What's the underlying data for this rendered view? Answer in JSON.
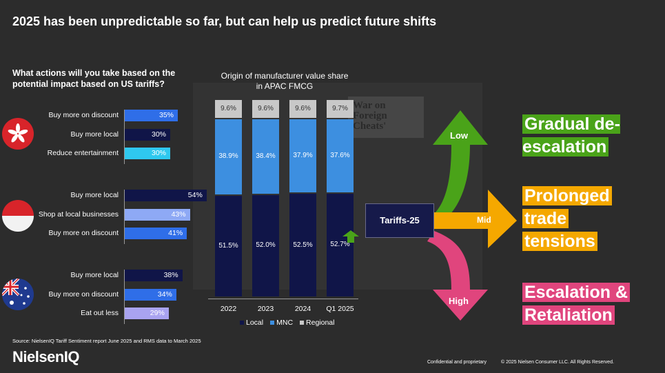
{
  "title": "2025 has been unpredictable so far, but can help us predict future shifts",
  "question": "What actions will you take based on the potential impact based on US tariffs?",
  "background_text": "War on Foreign Cheats'",
  "groups": [
    {
      "flag": "hong-kong",
      "items": [
        {
          "label": "Buy more on discount",
          "value": "35%",
          "pct": 35,
          "color": "#2f6ee8"
        },
        {
          "label": "Buy more local",
          "value": "30%",
          "pct": 30,
          "color": "#101548"
        },
        {
          "label": "Reduce entertainment",
          "value": "30%",
          "pct": 30,
          "color": "#2fc8ef"
        }
      ]
    },
    {
      "flag": "indonesia",
      "items": [
        {
          "label": "Buy more local",
          "value": "54%",
          "pct": 54,
          "color": "#101548"
        },
        {
          "label": "Shop at local businesses",
          "value": "43%",
          "pct": 43,
          "color": "#8ea9f5"
        },
        {
          "label": "Buy more on discount",
          "value": "41%",
          "pct": 41,
          "color": "#2f6ee8"
        }
      ]
    },
    {
      "flag": "australia",
      "items": [
        {
          "label": "Buy more local",
          "value": "38%",
          "pct": 38,
          "color": "#101548"
        },
        {
          "label": "Buy more on discount",
          "value": "34%",
          "pct": 34,
          "color": "#2f6ee8"
        },
        {
          "label": "Eat out less",
          "value": "29%",
          "pct": 29,
          "color": "#a9a3f0"
        }
      ]
    }
  ],
  "chart_data": {
    "type": "bar",
    "title": "Origin of manufacturer value share in APAC FMCG",
    "categories": [
      "2022",
      "2023",
      "2024",
      "Q1 2025"
    ],
    "series": [
      {
        "name": "Local",
        "values": [
          51.5,
          52.0,
          52.5,
          52.7
        ],
        "labels": [
          "51.5%",
          "52.0%",
          "52.5%",
          "52.7%"
        ],
        "color": "#101548"
      },
      {
        "name": "MNC",
        "values": [
          38.9,
          38.4,
          37.9,
          37.6
        ],
        "labels": [
          "38.9%",
          "38.4%",
          "37.9%",
          "37.6%"
        ],
        "color": "#3d8fe0"
      },
      {
        "name": "Regional",
        "values": [
          9.6,
          9.6,
          9.6,
          9.7
        ],
        "labels": [
          "9.6%",
          "9.6%",
          "9.6%",
          "9.7%"
        ],
        "color": "#c8c8c8"
      }
    ],
    "stacked": true,
    "ylim": [
      0,
      100
    ],
    "legend_position": "bottom"
  },
  "tariff_label": "Tariffs-25",
  "arrows": {
    "low": "Low",
    "mid": "Mid",
    "high": "High"
  },
  "scenarios": {
    "low": "Gradual de-escalation",
    "mid_line1": "Prolonged",
    "mid_line2": "trade",
    "mid_line3": "tensions",
    "high_line1": "Escalation &",
    "high_line2": "Retaliation"
  },
  "colors": {
    "low": "#4aa319",
    "mid": "#f5a800",
    "high": "#e0457d"
  },
  "source": "Source: NielsenIQ Tariff Sentiment report June 2025 and RMS data to March 2025",
  "logo": "NielsenIQ",
  "confidential": "Confidential and proprietary",
  "copyright": "© 2025 Nielsen Consumer LLC. All Rights Reserved."
}
